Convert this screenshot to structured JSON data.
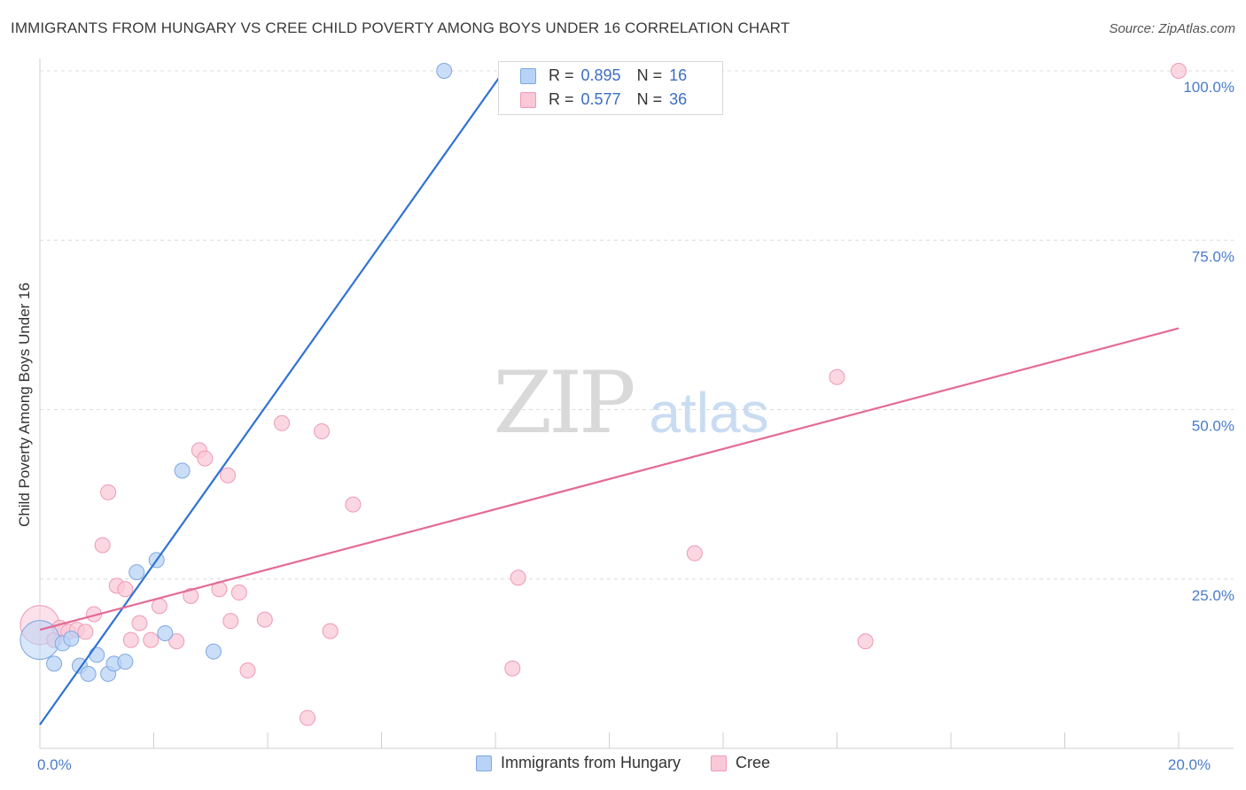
{
  "title": "IMMIGRANTS FROM HUNGARY VS CREE CHILD POVERTY AMONG BOYS UNDER 16 CORRELATION CHART",
  "source": "Source: ZipAtlas.com",
  "colors": {
    "blue_fill": "#b8d3f5",
    "blue_stroke": "#7fa8e0",
    "blue_line": "#2f73d2",
    "pink_fill": "#f9c9d8",
    "pink_stroke": "#ee9ab5",
    "pink_line": "#e46a94",
    "tick_text": "#4a7cc9",
    "grid": "#dcdcdc",
    "watermark": "#d9d9d9"
  },
  "legend": {
    "rows": [
      {
        "series": "Immigrants from Hungary",
        "r_label": "R =",
        "r_value": "0.895",
        "n_label": "N =",
        "n_value": "16"
      },
      {
        "series": "Cree",
        "r_label": "R =",
        "r_value": "0.577",
        "n_label": "N =",
        "n_value": "36"
      }
    ]
  },
  "watermark": {
    "left": "ZIP",
    "right": "atlas"
  },
  "chart_data": {
    "type": "scatter",
    "title": "IMMIGRANTS FROM HUNGARY VS CREE CHILD POVERTY AMONG BOYS UNDER 16 CORRELATION CHART",
    "xlabel": "",
    "ylabel": "Child Poverty Among Boys Under 16",
    "xlim": [
      0,
      20
    ],
    "ylim": [
      0,
      100
    ],
    "x_ticks": [
      {
        "value": 0,
        "label": "0.0%"
      },
      {
        "value": 20,
        "label": "20.0%"
      }
    ],
    "y_ticks": [
      {
        "value": 25,
        "label": "25.0%"
      },
      {
        "value": 50,
        "label": "50.0%"
      },
      {
        "value": 75,
        "label": "75.0%"
      },
      {
        "value": 100,
        "label": "100.0%"
      }
    ],
    "legend_position": "bottom-center",
    "series": [
      {
        "name": "Immigrants from Hungary",
        "color": "#b8d3f5",
        "points": [
          {
            "x": 0.0,
            "y": 16.0,
            "big": true
          },
          {
            "x": 0.25,
            "y": 12.5
          },
          {
            "x": 0.4,
            "y": 15.5
          },
          {
            "x": 0.55,
            "y": 16.2
          },
          {
            "x": 0.7,
            "y": 12.2
          },
          {
            "x": 0.85,
            "y": 11.0
          },
          {
            "x": 1.0,
            "y": 13.8
          },
          {
            "x": 1.2,
            "y": 11.0
          },
          {
            "x": 1.3,
            "y": 12.5
          },
          {
            "x": 1.5,
            "y": 12.8
          },
          {
            "x": 1.7,
            "y": 26.0
          },
          {
            "x": 2.05,
            "y": 27.8
          },
          {
            "x": 2.2,
            "y": 17.0
          },
          {
            "x": 2.5,
            "y": 41.0
          },
          {
            "x": 3.05,
            "y": 14.3
          },
          {
            "x": 7.1,
            "y": 100.0
          }
        ],
        "trend": {
          "x0": 0.0,
          "y0": 3.5,
          "x1": 8.15,
          "y1": 100.0
        }
      },
      {
        "name": "Cree",
        "color": "#f9c9d8",
        "points": [
          {
            "x": 0.0,
            "y": 18.2,
            "big": true
          },
          {
            "x": 0.25,
            "y": 16.0
          },
          {
            "x": 0.35,
            "y": 17.8
          },
          {
            "x": 0.5,
            "y": 17.2
          },
          {
            "x": 0.65,
            "y": 17.5
          },
          {
            "x": 0.8,
            "y": 17.2
          },
          {
            "x": 0.95,
            "y": 19.8
          },
          {
            "x": 1.1,
            "y": 30.0
          },
          {
            "x": 1.2,
            "y": 37.8
          },
          {
            "x": 1.35,
            "y": 24.0
          },
          {
            "x": 1.5,
            "y": 23.5
          },
          {
            "x": 1.6,
            "y": 16.0
          },
          {
            "x": 1.75,
            "y": 18.5
          },
          {
            "x": 1.95,
            "y": 16.0
          },
          {
            "x": 2.1,
            "y": 21.0
          },
          {
            "x": 2.4,
            "y": 15.8
          },
          {
            "x": 2.65,
            "y": 22.5
          },
          {
            "x": 2.8,
            "y": 44.0
          },
          {
            "x": 2.9,
            "y": 42.8
          },
          {
            "x": 3.3,
            "y": 40.3
          },
          {
            "x": 3.15,
            "y": 23.5
          },
          {
            "x": 3.35,
            "y": 18.8
          },
          {
            "x": 3.5,
            "y": 23.0
          },
          {
            "x": 3.65,
            "y": 11.5
          },
          {
            "x": 3.95,
            "y": 19.0
          },
          {
            "x": 4.25,
            "y": 48.0
          },
          {
            "x": 4.7,
            "y": 4.5
          },
          {
            "x": 4.95,
            "y": 46.8
          },
          {
            "x": 5.1,
            "y": 17.3
          },
          {
            "x": 5.5,
            "y": 36.0
          },
          {
            "x": 8.3,
            "y": 11.8
          },
          {
            "x": 8.4,
            "y": 25.2
          },
          {
            "x": 11.5,
            "y": 28.8
          },
          {
            "x": 14.0,
            "y": 54.8
          },
          {
            "x": 14.5,
            "y": 15.8
          },
          {
            "x": 20.0,
            "y": 100.0
          }
        ],
        "trend": {
          "x0": 0.0,
          "y0": 17.5,
          "x1": 20.0,
          "y1": 62.0
        }
      }
    ]
  }
}
